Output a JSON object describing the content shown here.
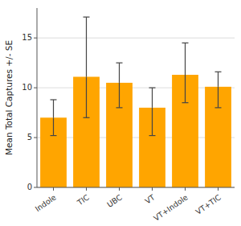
{
  "chart_data": {
    "type": "bar",
    "categories": [
      "Indole",
      "TIC",
      "UBC",
      "VT",
      "VT+Indole",
      "VT+TIC"
    ],
    "values": [
      7.0,
      11.1,
      10.5,
      8.0,
      11.3,
      10.1
    ],
    "errors_lower": [
      1.8,
      4.1,
      2.5,
      2.8,
      2.8,
      2.1
    ],
    "errors_upper": [
      1.8,
      6.0,
      2.0,
      2.0,
      3.2,
      1.5
    ],
    "color": "#FFA500",
    "ylabel": "Mean Total Captures +/- SE",
    "ylim": [
      0,
      18
    ],
    "yticks": [
      0,
      5,
      10,
      15
    ],
    "grid": true
  }
}
